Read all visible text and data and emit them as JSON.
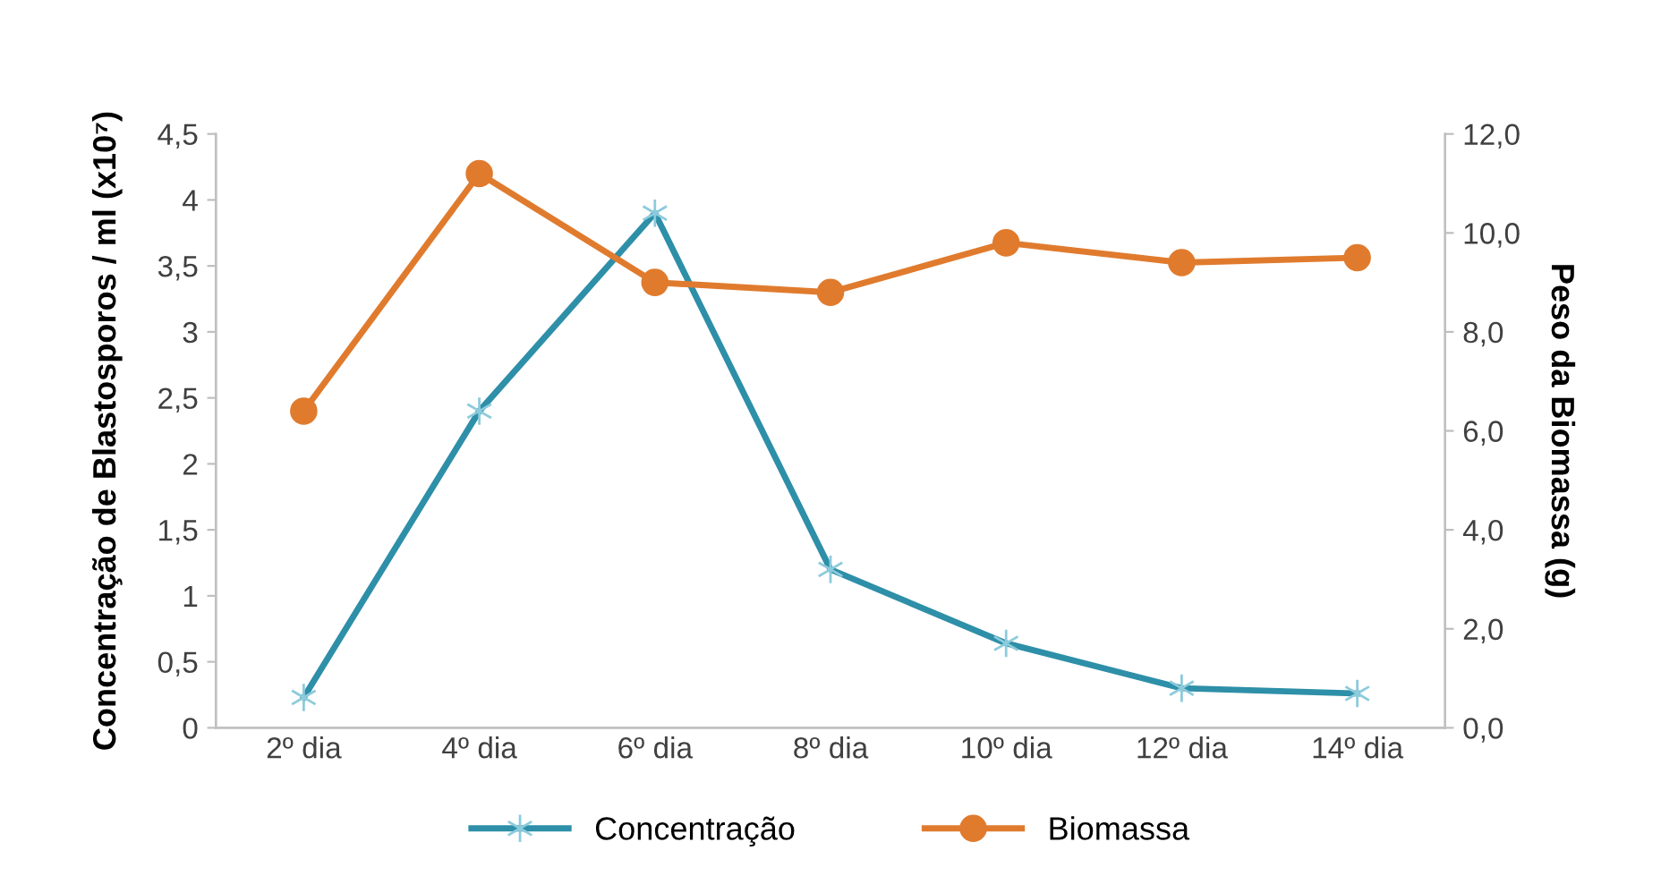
{
  "chart_data": {
    "type": "line",
    "ylabel": "Concentração de Blastosporos / ml (x10⁷)",
    "y2label": "Peso da Biomassa (g)",
    "categories": [
      "2º dia",
      "4º dia",
      "6º dia",
      "8º dia",
      "10º dia",
      "12º dia",
      "14º dia"
    ],
    "series": [
      {
        "name": "Concentração",
        "color": "#2e8fa8",
        "marker": "cross",
        "values": [
          0.23,
          2.4,
          3.9,
          1.2,
          0.64,
          0.3,
          0.26
        ]
      },
      {
        "name": "Biomassa",
        "color": "#e07b2e",
        "marker": "circle",
        "axis": "y2",
        "values": [
          6.4,
          11.2,
          9.0,
          8.8,
          9.8,
          9.4,
          9.5
        ]
      }
    ],
    "ylim": [
      0,
      4.5
    ],
    "yticks": [
      0,
      {
        "value": 0.5,
        "label": "0,5"
      },
      1,
      {
        "value": 1.5,
        "label": "1,5"
      },
      2,
      {
        "value": 2.5,
        "label": "2,5"
      },
      3,
      {
        "value": 3.5,
        "label": "3,5"
      },
      4,
      {
        "value": 4.5,
        "label": "4,5"
      }
    ],
    "y2lim": [
      0,
      12
    ],
    "y2ticks": [
      {
        "value": 0,
        "label": "0,0"
      },
      {
        "value": 2,
        "label": "2,0"
      },
      {
        "value": 4,
        "label": "4,0"
      },
      {
        "value": 6,
        "label": "6,0"
      },
      {
        "value": 8,
        "label": "8,0"
      },
      {
        "value": 10,
        "label": "10,0"
      },
      {
        "value": 12,
        "label": "12,0"
      }
    ],
    "grid": false,
    "legend": "bottom"
  }
}
